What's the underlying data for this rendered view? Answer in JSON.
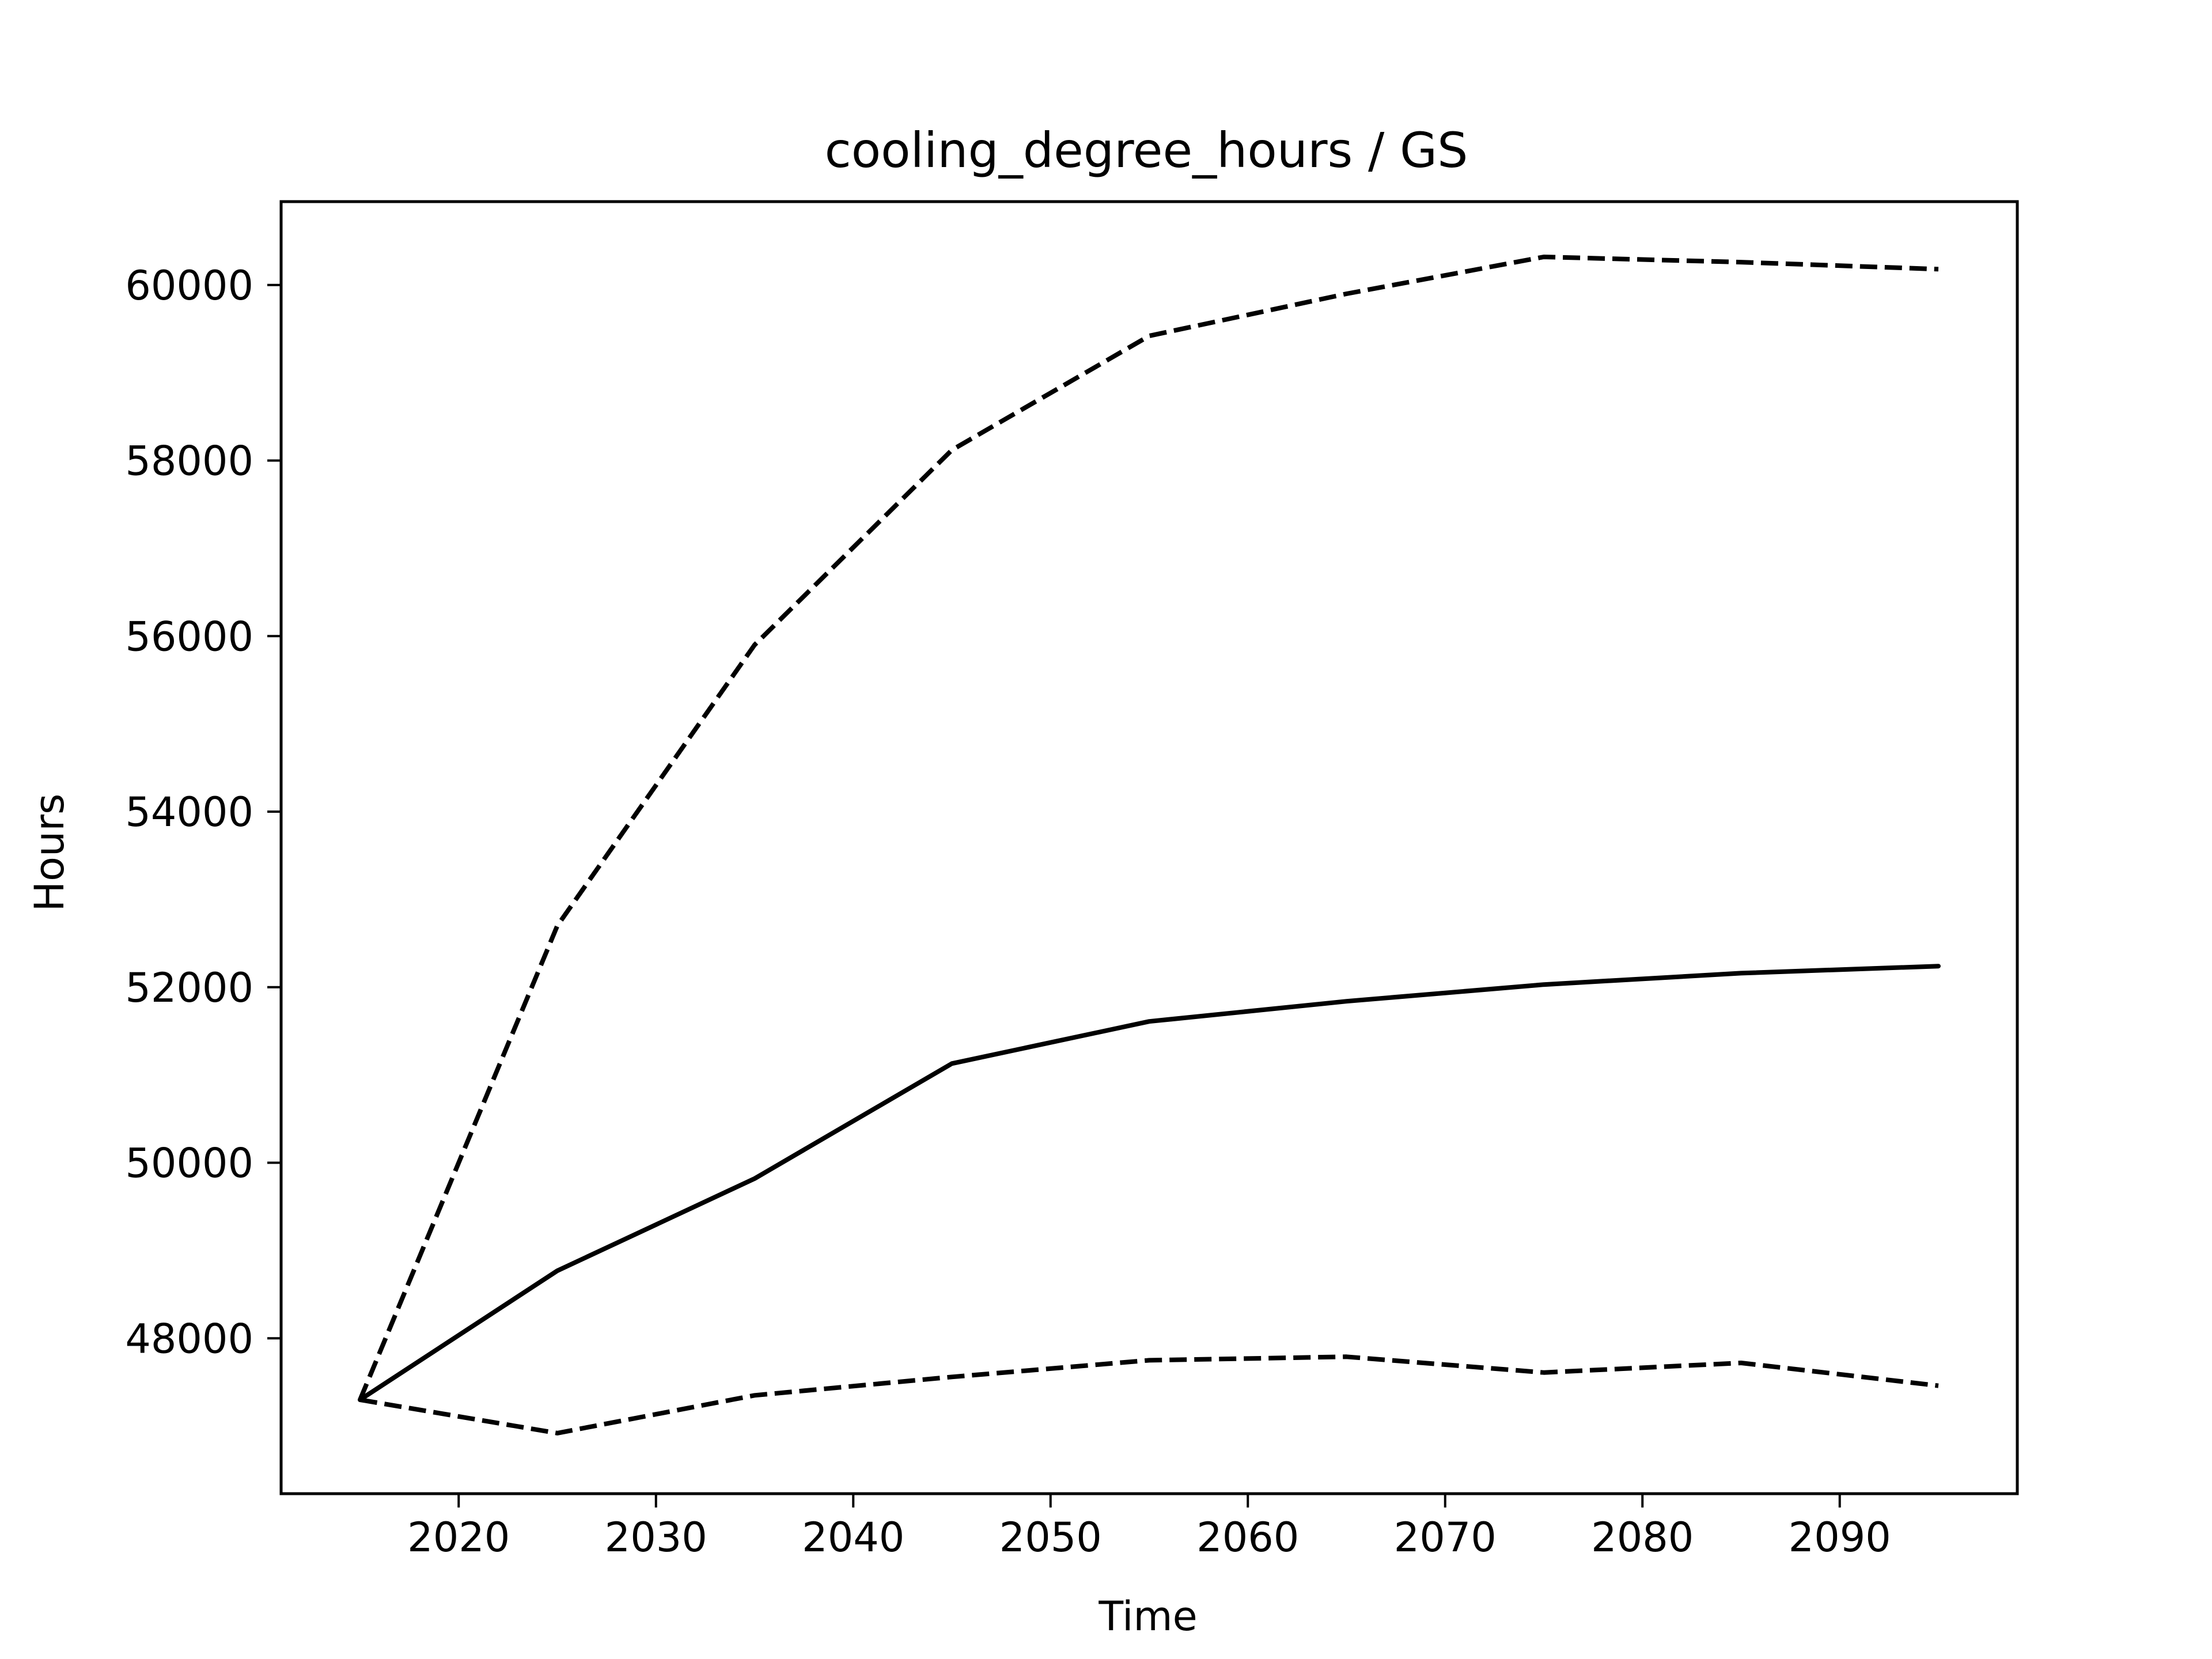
{
  "chart_data": {
    "type": "line",
    "title": "cooling_degree_hours / GS",
    "xlabel": "Time",
    "ylabel": "Hours",
    "x": [
      2015,
      2025,
      2035,
      2045,
      2055,
      2065,
      2075,
      2085,
      2095
    ],
    "xlim": [
      2011.0,
      2099.0
    ],
    "ylim": [
      46230,
      60950
    ],
    "xticks": [
      2020,
      2030,
      2040,
      2050,
      2060,
      2070,
      2080,
      2090
    ],
    "yticks": [
      48000,
      50000,
      52000,
      54000,
      56000,
      58000,
      60000
    ],
    "grid": false,
    "series": [
      {
        "style": "dashed",
        "color": "#000000",
        "values": [
          47300,
          52700,
          55900,
          58120,
          59420,
          59900,
          60320,
          60260,
          60180
        ]
      },
      {
        "style": "solid",
        "color": "#000000",
        "values": [
          47300,
          48770,
          49820,
          51130,
          51610,
          51840,
          52030,
          52160,
          52240
        ]
      },
      {
        "style": "dashed",
        "color": "#000000",
        "values": [
          47300,
          46920,
          47350,
          47560,
          47750,
          47790,
          47610,
          47720,
          47460
        ]
      }
    ]
  }
}
